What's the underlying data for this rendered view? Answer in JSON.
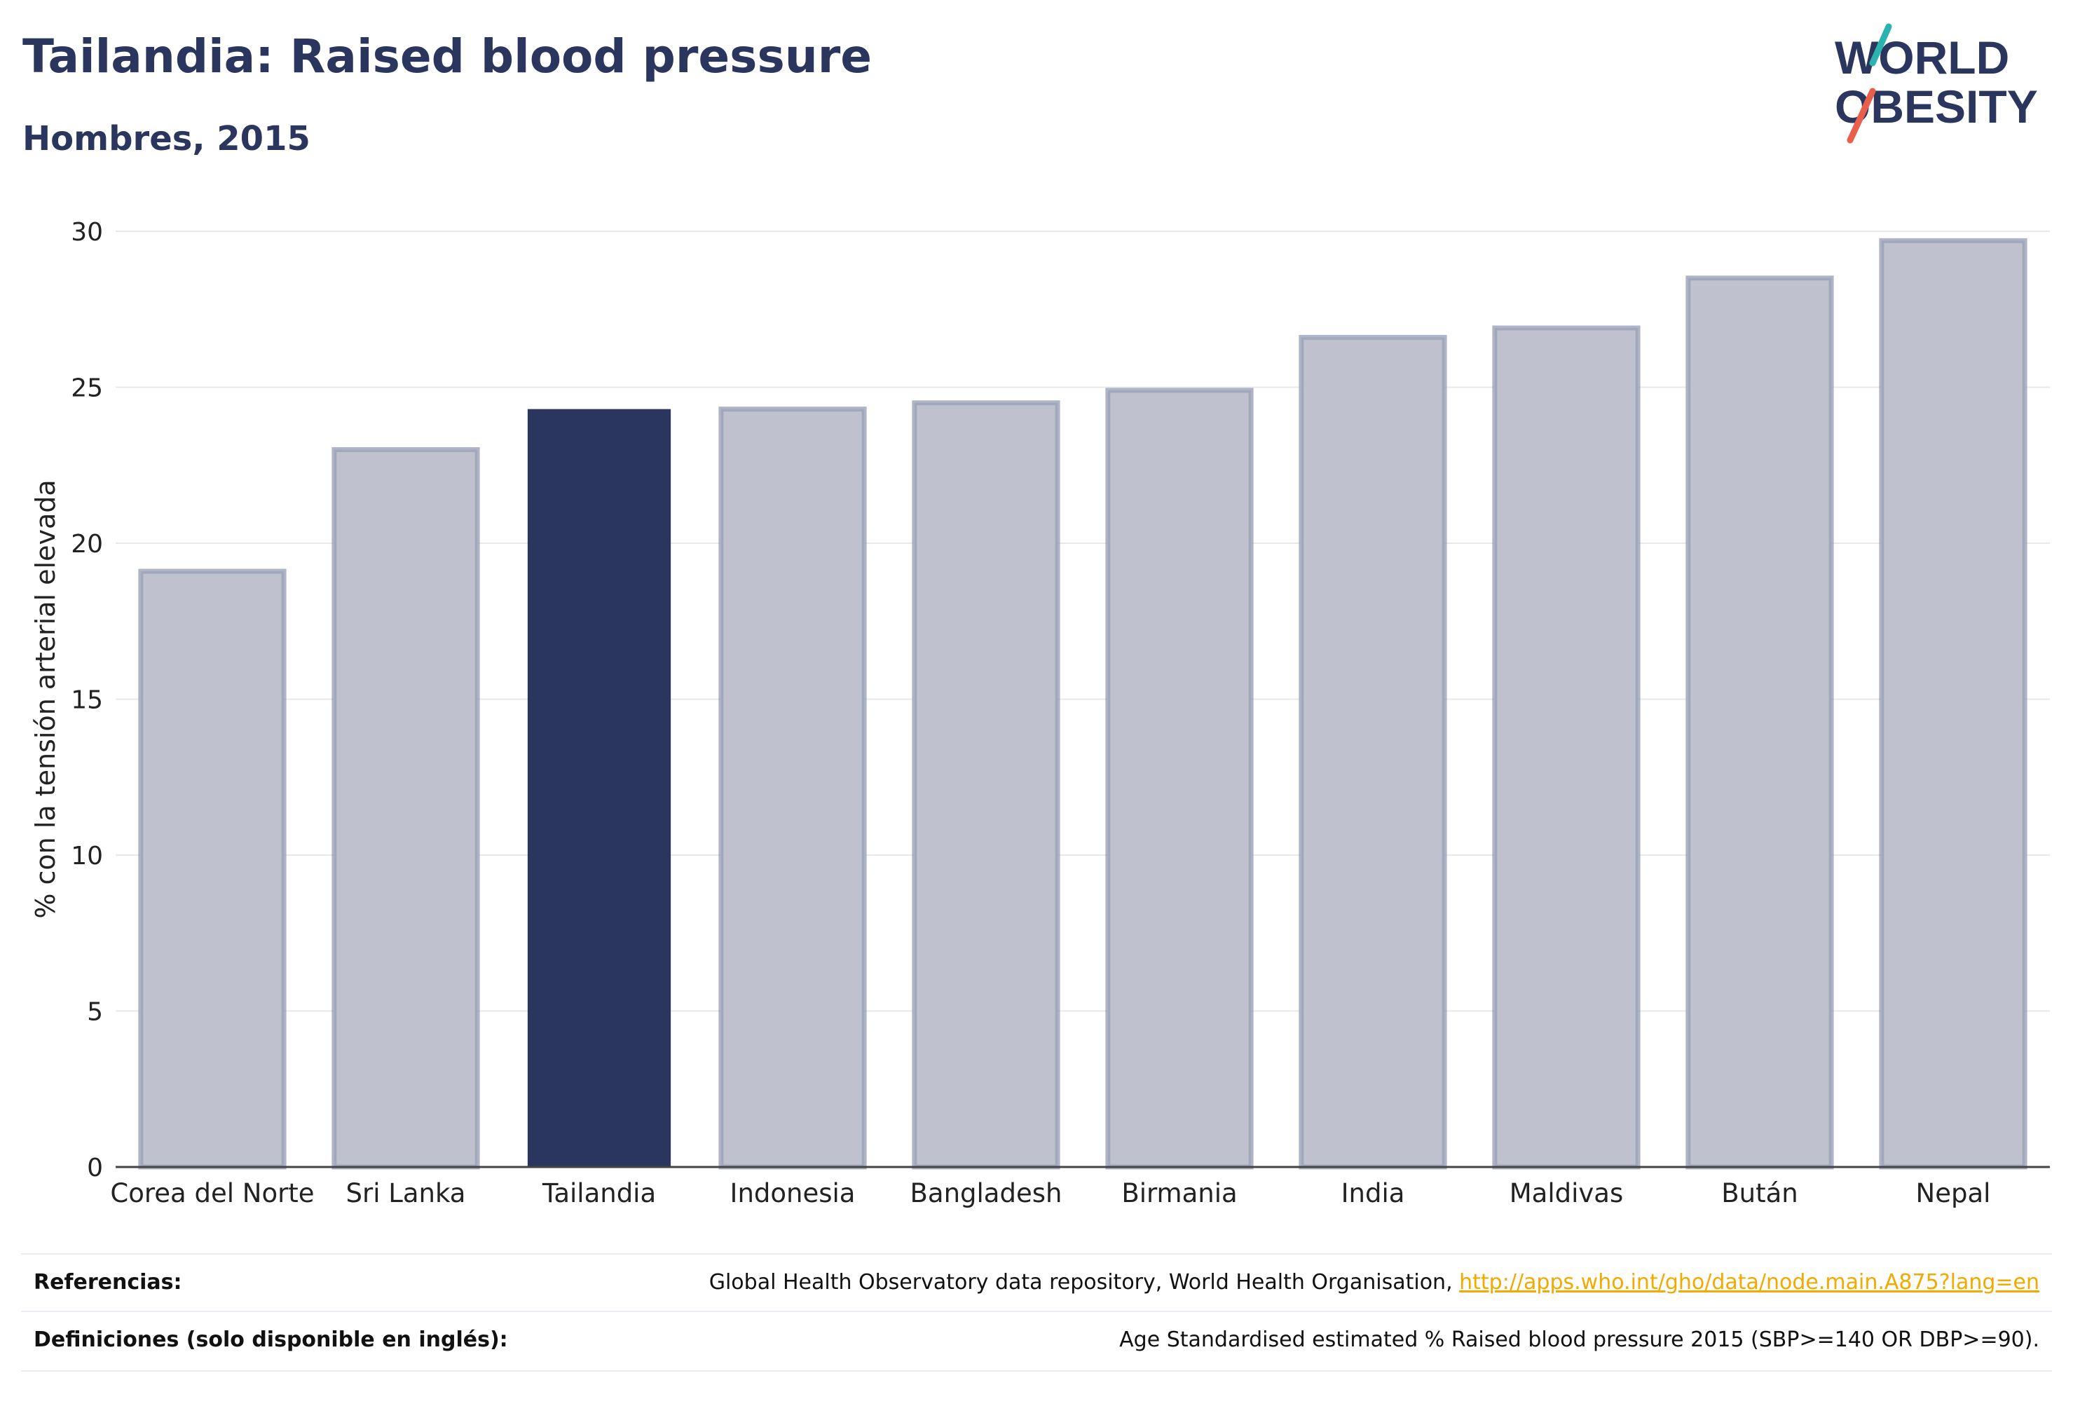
{
  "header": {
    "title": "Tailandia: Raised blood pressure",
    "subtitle": "Hombres, 2015"
  },
  "logo": {
    "line1": "WORLD",
    "line2": "OBESITY",
    "text_color": "#2b365e",
    "slash_colors": [
      "#2ab3b1",
      "#e8604c"
    ]
  },
  "chart_data": {
    "type": "bar",
    "categories": [
      "Corea del Norte",
      "Sri Lanka",
      "Tailandia",
      "Indonesia",
      "Bangladesh",
      "Birmania",
      "India",
      "Maldivas",
      "Bután",
      "Nepal"
    ],
    "values": [
      19.1,
      23.0,
      24.3,
      24.3,
      24.5,
      24.9,
      26.6,
      26.9,
      28.5,
      29.7
    ],
    "highlight": "Tailandia",
    "ylabel": "% con la tensión arterial elevada",
    "ylim": [
      0,
      30
    ],
    "yticks": [
      0,
      5,
      10,
      15,
      20,
      25,
      30
    ],
    "grid": true,
    "colors": {
      "bar": "#bfc2ce",
      "bar_border": "#9ba1b8",
      "highlight": "#2b365e"
    }
  },
  "references": {
    "sources_label": "Referencias:",
    "sources_text": "Global Health Observatory data repository, World Health Organisation, ",
    "sources_link": "http://apps.who.int/gho/data/node.main.A875?lang=en",
    "definitions_label": "Definiciones (solo disponible en inglés):",
    "definitions_text": "Age Standardised estimated % Raised blood pressure 2015 (SBP>=140 OR DBP>=90)."
  }
}
